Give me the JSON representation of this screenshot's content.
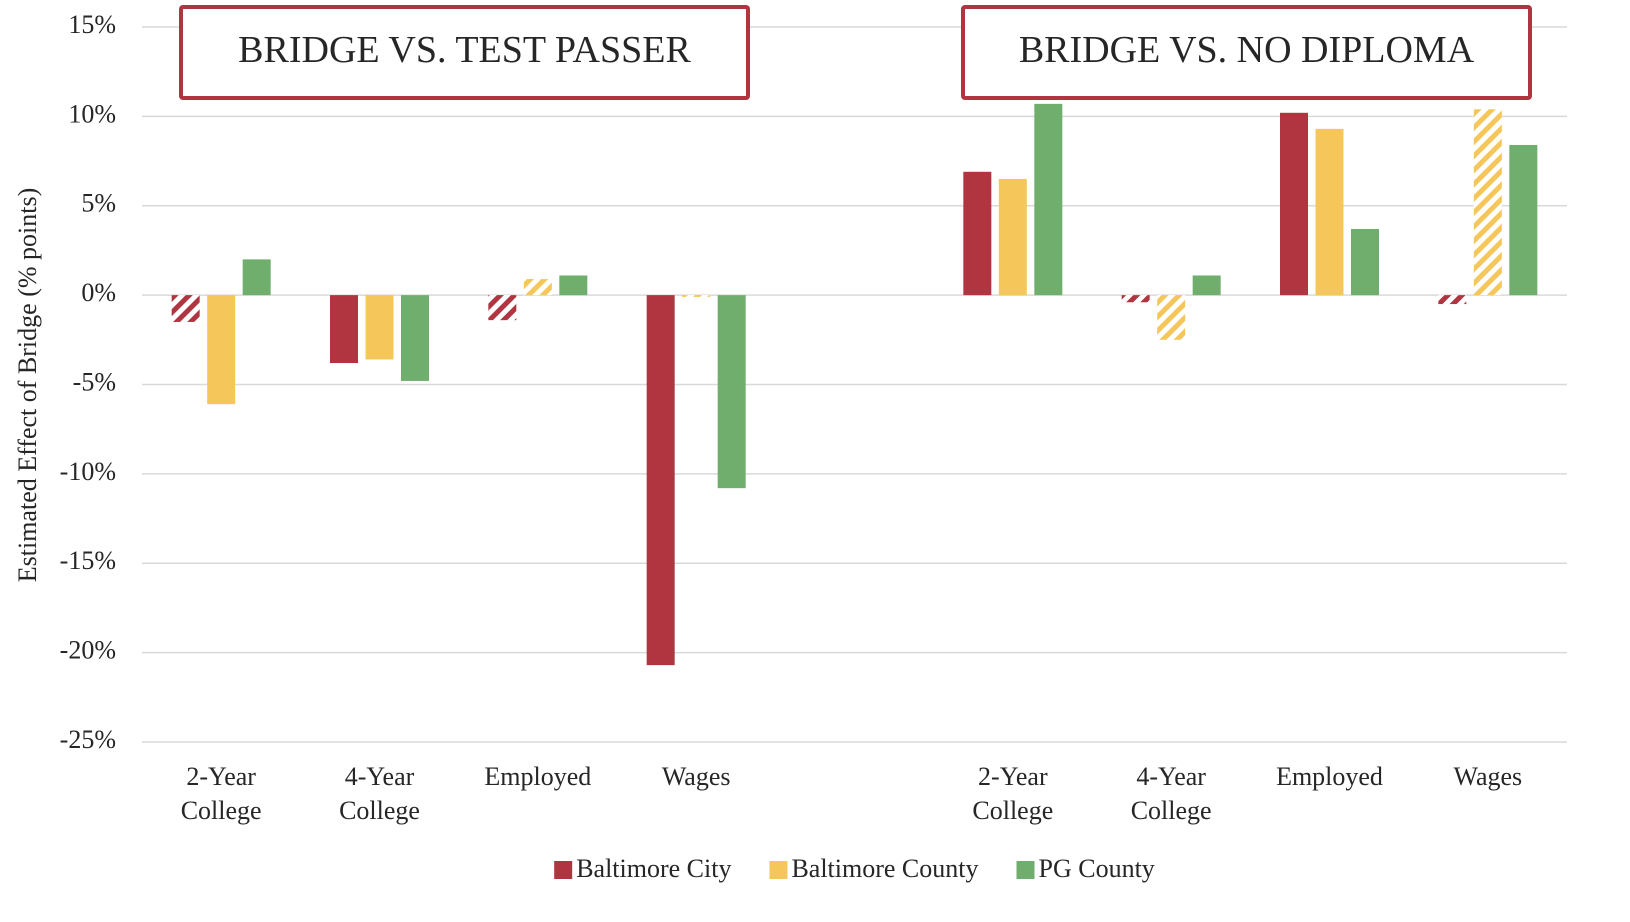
{
  "chart_data": {
    "type": "bar",
    "ylabel": "Estimated Effect of Bridge (% points)",
    "annotations": [
      "BRIDGE VS. TEST PASSER",
      "BRIDGE VS. NO DIPLOMA"
    ],
    "categories": [
      "2-Year College",
      "4-Year College",
      "Employed",
      "Wages",
      null,
      "2-Year College",
      "4-Year College",
      "Employed",
      "Wages"
    ],
    "series": [
      {
        "name": "Baltimore City",
        "color": "#b03540",
        "values": [
          -1.5,
          -3.8,
          -1.4,
          -20.7,
          null,
          6.9,
          -0.4,
          10.2,
          -0.5
        ],
        "hatched": [
          true,
          false,
          true,
          false,
          null,
          false,
          true,
          false,
          true
        ]
      },
      {
        "name": "Baltimore County",
        "color": "#f5c75a",
        "values": [
          -6.1,
          -3.6,
          0.9,
          -0.1,
          null,
          6.5,
          -2.5,
          9.3,
          10.4
        ],
        "hatched": [
          false,
          false,
          true,
          true,
          null,
          false,
          true,
          false,
          true
        ]
      },
      {
        "name": "PG County",
        "color": "#6fae6c",
        "values": [
          2.0,
          -4.8,
          1.1,
          -10.8,
          null,
          10.7,
          1.1,
          3.7,
          8.4
        ],
        "hatched": [
          false,
          false,
          false,
          false,
          null,
          false,
          false,
          false,
          false
        ]
      }
    ],
    "ylim": [
      -25,
      15
    ],
    "yticks": [
      {
        "value": -25,
        "label": "-25%"
      },
      {
        "value": -20,
        "label": "-20%"
      },
      {
        "value": -15,
        "label": "-15%"
      },
      {
        "value": -10,
        "label": "-10%"
      },
      {
        "value": -5,
        "label": "-5%"
      },
      {
        "value": 0,
        "label": "0%"
      },
      {
        "value": 5,
        "label": "5%"
      },
      {
        "value": 10,
        "label": "10%"
      },
      {
        "value": 15,
        "label": "15%"
      }
    ],
    "grid": true,
    "legend": "bottom"
  }
}
